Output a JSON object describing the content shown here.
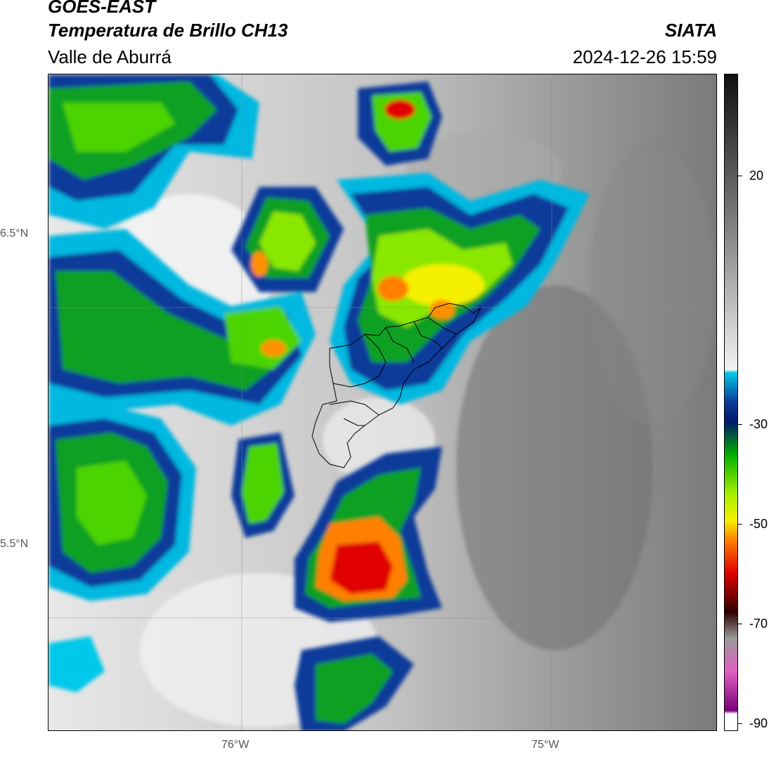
{
  "header": {
    "satellite": "GOES-EAST",
    "product": "Temperatura de Brillo CH13",
    "region": "Valle de Aburrá",
    "organization": "SIATA",
    "timestamp": "2024-12-26 15:59"
  },
  "axes": {
    "lat_labels": [
      "6.5°N",
      "5.5°N"
    ],
    "lon_labels": [
      "76°W",
      "75°W"
    ]
  },
  "colorbar": {
    "tick_labels": [
      "20",
      "-30",
      "-50",
      "-70",
      "-90"
    ],
    "colors": {
      "warm_top": "#0f0f0f",
      "warm_mid": "#8a8a8a",
      "neutral": "#f2f2f2",
      "cyan": "#00c8e8",
      "blue": "#0a3a9a",
      "dark_blue": "#001a6a",
      "green": "#00b000",
      "lime": "#a8f000",
      "yellow": "#f5f000",
      "orange": "#ff8000",
      "red": "#e00000",
      "dark_red": "#300000",
      "pink": "#e060c0",
      "purple": "#7a007a"
    }
  }
}
